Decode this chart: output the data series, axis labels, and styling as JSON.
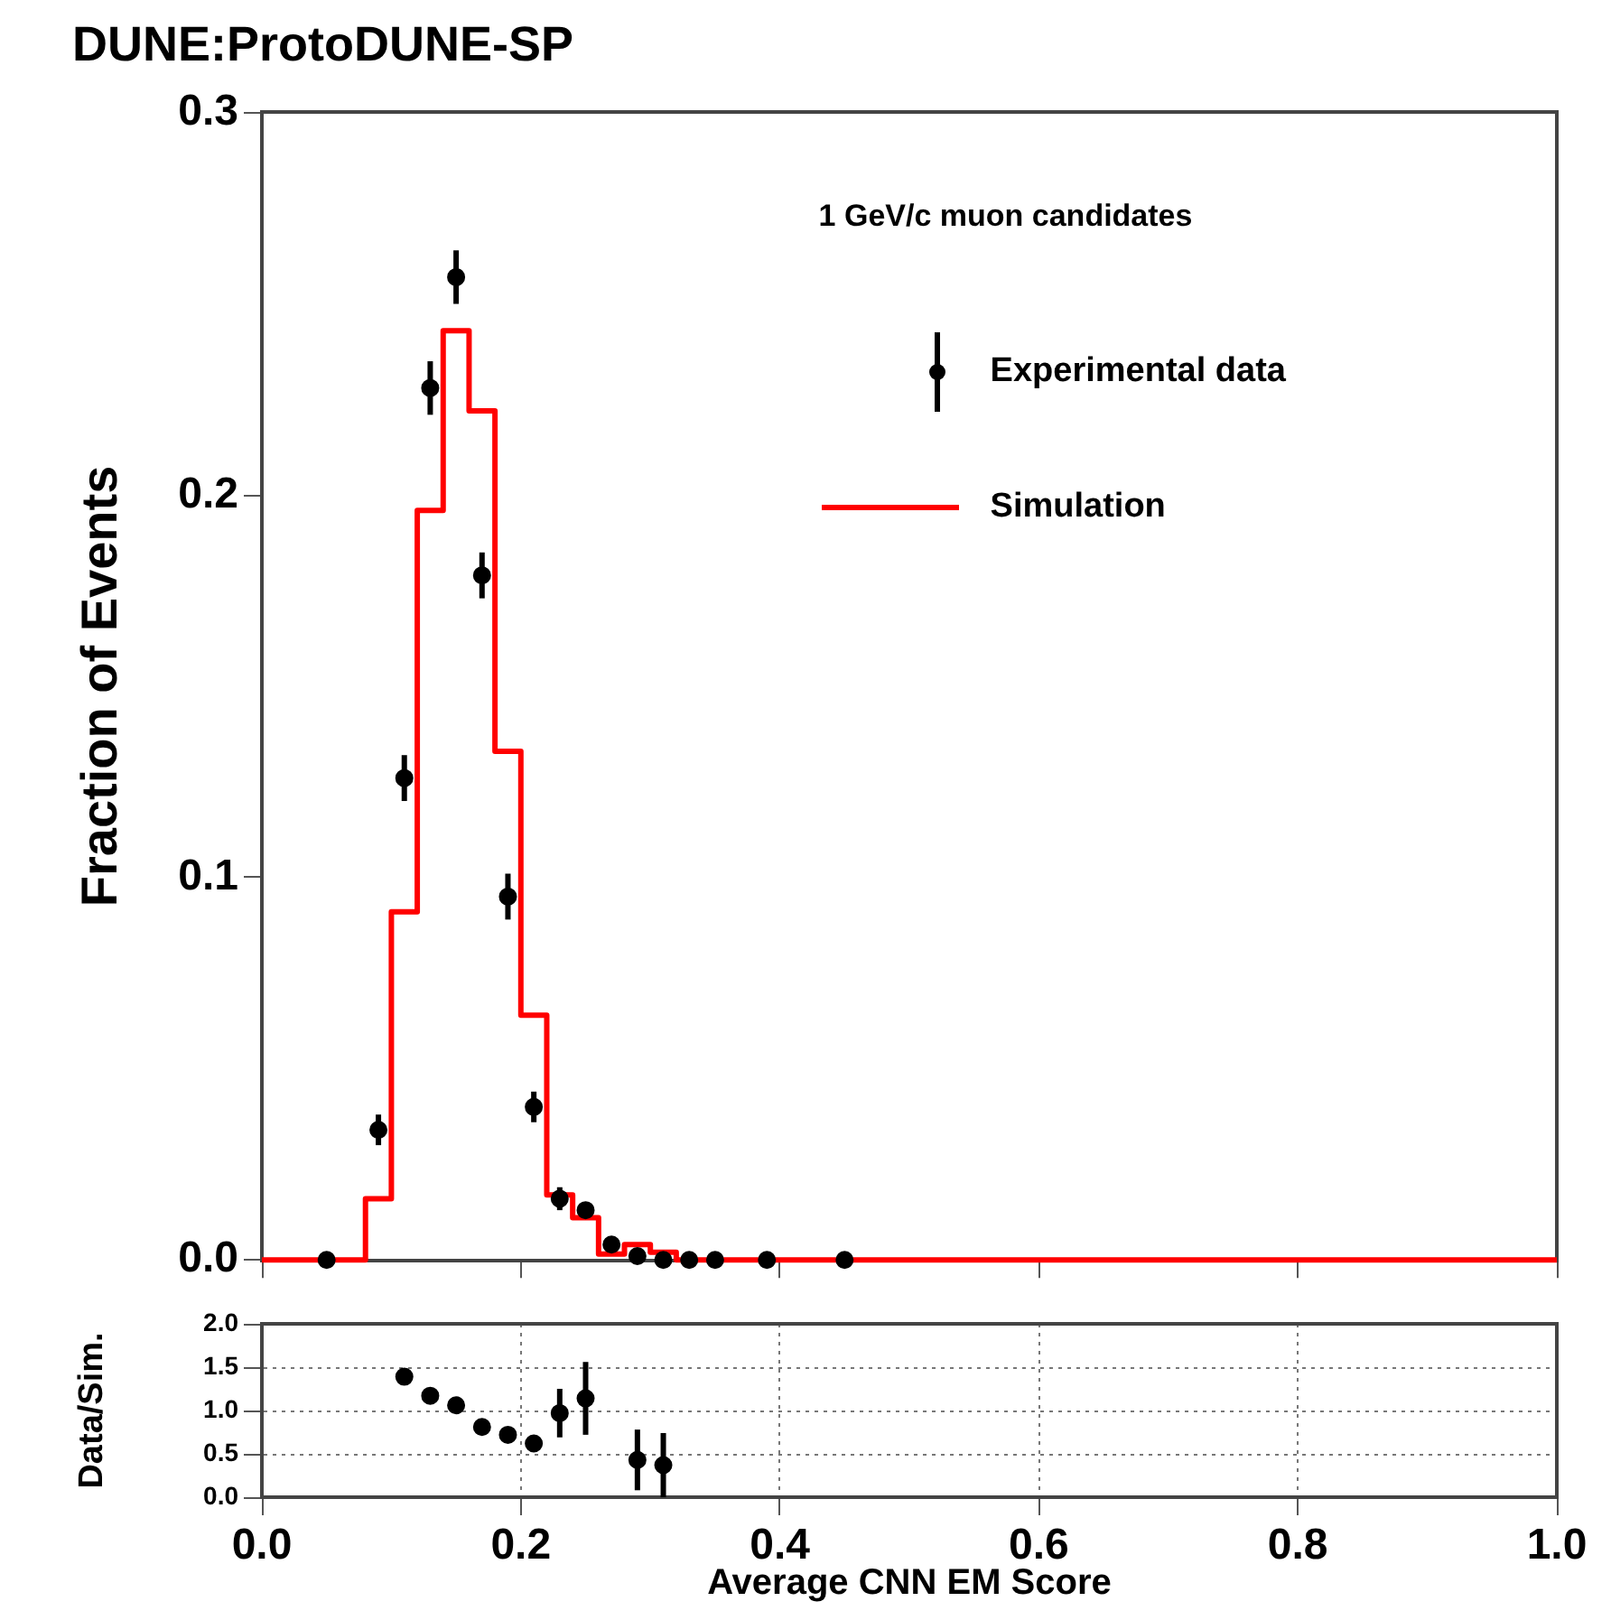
{
  "chart_data": [
    {
      "type": "histogram",
      "title": "DUNE:ProtoDUNE-SP",
      "ylabel": "Fraction of Events",
      "annotations": [
        "1 GeV/c muon candidates"
      ],
      "bins": [
        0,
        0.02,
        0.04,
        0.06,
        0.08,
        0.1,
        0.12,
        0.14,
        0.16,
        0.18,
        0.2,
        0.22,
        0.24,
        0.26,
        0.28,
        0.3,
        0.32,
        0.34,
        0.36,
        0.38,
        0.4,
        0.42,
        0.44,
        0.46,
        0.48,
        0.5,
        0.52,
        0.54,
        0.56,
        0.58,
        0.6,
        0.62,
        0.64,
        0.66,
        0.68,
        0.7,
        0.72,
        0.74,
        0.76,
        0.78,
        0.8,
        0.82,
        0.84,
        0.86,
        0.88,
        0.9,
        0.92,
        0.94,
        0.96,
        0.98,
        1.0
      ],
      "xlim": [
        0,
        1
      ],
      "xticks": [
        0,
        0.2,
        0.4,
        0.6,
        0.8,
        1.0
      ],
      "ylim": [
        0,
        0.3
      ],
      "yticks": [
        {
          "value": 0,
          "label": "0.0"
        },
        0.1,
        0.2,
        0.3
      ],
      "tick_labels": "y",
      "legend": "top right",
      "grid": false,
      "series": [
        {
          "name": "Experimental data",
          "type": "scatter",
          "color": "#000000",
          "marker": "circle",
          "x": [
            0.05,
            0.09,
            0.11,
            0.13,
            0.15,
            0.17,
            0.19,
            0.21,
            0.23,
            0.25,
            0.27,
            0.29,
            0.31,
            0.33,
            0.35,
            0.39,
            0.45
          ],
          "values": [
            0,
            0.034,
            0.126,
            0.228,
            0.257,
            0.179,
            0.095,
            0.04,
            0.016,
            0.013,
            0.004,
            0.001,
            0,
            0,
            0,
            0,
            0
          ],
          "errors": [
            null,
            0.004,
            0.006,
            0.007,
            0.007,
            0.006,
            0.006,
            0.004,
            0.003,
            0.002,
            null,
            null,
            null,
            null,
            null,
            null,
            null
          ]
        },
        {
          "name": "Simulation",
          "type": "histogram",
          "color": "#ff0000",
          "values": [
            0,
            0,
            0,
            0,
            0.016,
            0.091,
            0.196,
            0.243,
            0.222,
            0.133,
            0.064,
            0.017,
            0.011,
            0.0015,
            0.004,
            0.002,
            0,
            0,
            0,
            0,
            0,
            0,
            0,
            0,
            0,
            0,
            0,
            0,
            0,
            0,
            0,
            0,
            0,
            0,
            0,
            0,
            0,
            0,
            0,
            0,
            0,
            0,
            0,
            0,
            0,
            0,
            0,
            0,
            0,
            0
          ]
        }
      ]
    },
    {
      "type": "scatter",
      "xlabel": "Average CNN EM Score",
      "ylabel": "Data/Sim.",
      "xlim": [
        0,
        1
      ],
      "xticks": [
        {
          "value": 0,
          "label": "0.0"
        },
        0.2,
        0.4,
        0.6,
        0.8,
        {
          "value": 1,
          "label": "1.0"
        }
      ],
      "ylim": [
        0,
        2
      ],
      "yticks": [
        {
          "value": 0,
          "label": "0.0"
        },
        0.5,
        {
          "value": 1,
          "label": "1.0"
        },
        1.5,
        {
          "value": 2,
          "label": "2.0"
        }
      ],
      "grid": true,
      "line_style": "dotted",
      "marker": "circle",
      "legend": false,
      "series": [
        {
          "color": "#000000",
          "x": [
            0.11,
            0.13,
            0.15,
            0.17,
            0.19,
            0.21,
            0.23,
            0.25,
            0.29,
            0.31
          ],
          "values": [
            1.39,
            1.17,
            1.06,
            0.81,
            0.72,
            0.62,
            0.97,
            1.14,
            0.43,
            0.37
          ],
          "errors": [
            0.08,
            0.04,
            0.02,
            0.02,
            0.02,
            0.06,
            0.28,
            0.42,
            0.35,
            0.37
          ]
        }
      ]
    }
  ]
}
